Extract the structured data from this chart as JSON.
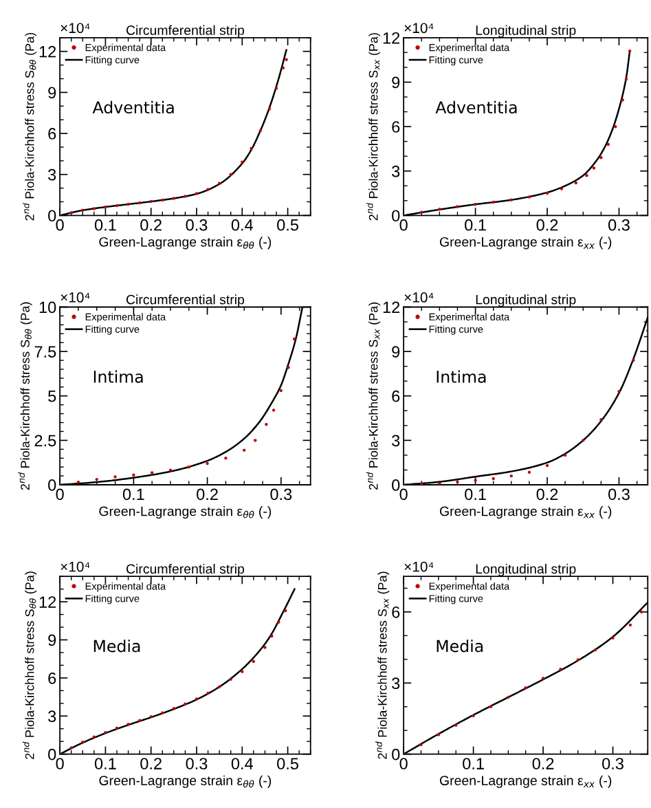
{
  "chart_data": [
    {
      "type": "line",
      "title": "Circumferential strip",
      "xlabel": "Green-Lagrange strain ε$_{θθ}$ (-)",
      "ylabel": "2$^{nd}$ Piola-Kirchhoff stress S$_{θθ}$ (Pa)",
      "annotations": [
        "×10⁴",
        "Adventitia"
      ],
      "xlim": [
        0,
        0.55
      ],
      "xticks": [
        0,
        0.1,
        0.2,
        0.3,
        0.4,
        0.5
      ],
      "ylim": [
        0,
        13
      ],
      "yticks": [
        0,
        3,
        6,
        9,
        12
      ],
      "legend": "top left",
      "series": [
        {
          "name": "Experimental data",
          "type": "scatter",
          "marker": "circle",
          "color": "#c00000",
          "x": [
            0,
            0.025,
            0.05,
            0.075,
            0.1,
            0.125,
            0.15,
            0.175,
            0.2,
            0.225,
            0.25,
            0.275,
            0.3,
            0.325,
            0.35,
            0.375,
            0.4,
            0.42,
            0.44,
            0.46,
            0.475,
            0.49,
            0.497
          ],
          "values": [
            0,
            0.2,
            0.38,
            0.5,
            0.62,
            0.72,
            0.82,
            0.92,
            1.02,
            1.13,
            1.25,
            1.4,
            1.6,
            1.9,
            2.35,
            3.0,
            3.9,
            4.9,
            6.2,
            7.8,
            9.3,
            10.8,
            11.4
          ]
        },
        {
          "name": "Fitting curve",
          "type": "line",
          "line_style": "solid",
          "color": "#000000",
          "x": [
            0,
            0.05,
            0.1,
            0.15,
            0.2,
            0.25,
            0.3,
            0.35,
            0.4,
            0.42,
            0.44,
            0.46,
            0.48,
            0.497
          ],
          "values": [
            0,
            0.38,
            0.62,
            0.82,
            1.02,
            1.25,
            1.58,
            2.3,
            3.8,
            4.8,
            6.2,
            7.9,
            10.0,
            12.1
          ]
        }
      ]
    },
    {
      "type": "line",
      "title": "Longitudinal strip",
      "xlabel": "Green-Lagrange strain ε$_{xx}$ (-)",
      "ylabel": "2$^{nd}$ Piola-Kirchhoff stress S$_{xx}$ (Pa)",
      "annotations": [
        "×10⁴",
        "Adventitia"
      ],
      "xlim": [
        0,
        0.34
      ],
      "xticks": [
        0,
        0.1,
        0.2,
        0.3
      ],
      "ylim": [
        0,
        12
      ],
      "yticks": [
        0,
        3,
        6,
        9,
        12
      ],
      "legend": "top left",
      "series": [
        {
          "name": "Experimental data",
          "type": "scatter",
          "marker": "circle",
          "color": "#c00000",
          "x": [
            0,
            0.025,
            0.05,
            0.075,
            0.1,
            0.125,
            0.15,
            0.175,
            0.2,
            0.22,
            0.24,
            0.255,
            0.265,
            0.275,
            0.285,
            0.295,
            0.305,
            0.31,
            0.315
          ],
          "values": [
            0,
            0.22,
            0.42,
            0.6,
            0.75,
            0.9,
            1.05,
            1.25,
            1.5,
            1.8,
            2.2,
            2.7,
            3.2,
            3.9,
            4.8,
            6.0,
            7.8,
            9.2,
            11.1
          ]
        },
        {
          "name": "Fitting curve",
          "type": "line",
          "line_style": "solid",
          "color": "#000000",
          "x": [
            0,
            0.05,
            0.1,
            0.15,
            0.2,
            0.225,
            0.25,
            0.27,
            0.28,
            0.29,
            0.3,
            0.31,
            0.315
          ],
          "values": [
            0,
            0.4,
            0.75,
            1.05,
            1.55,
            2.0,
            2.7,
            3.8,
            4.6,
            5.7,
            7.2,
            9.3,
            11.1
          ]
        }
      ]
    },
    {
      "type": "line",
      "title": "Circumferential strip",
      "xlabel": "Green-Lagrange strain ε$_{θθ}$ (-)",
      "ylabel": "2$^{nd}$ Piola-Kirchhoff stress S$_{θθ}$ (Pa)",
      "annotations": [
        "×10⁴",
        "Intima"
      ],
      "xlim": [
        0,
        0.34
      ],
      "xticks": [
        0,
        0.1,
        0.2,
        0.3
      ],
      "ylim": [
        0,
        10
      ],
      "yticks": [
        0,
        2.5,
        5,
        7.5,
        10
      ],
      "legend": "top left",
      "series": [
        {
          "name": "Experimental data",
          "type": "scatter",
          "marker": "circle",
          "color": "#c00000",
          "x": [
            0,
            0.025,
            0.05,
            0.075,
            0.1,
            0.125,
            0.15,
            0.175,
            0.2,
            0.225,
            0.25,
            0.265,
            0.28,
            0.29,
            0.3,
            0.31,
            0.318
          ],
          "values": [
            0,
            0.15,
            0.3,
            0.45,
            0.55,
            0.68,
            0.82,
            1.0,
            1.2,
            1.5,
            1.95,
            2.5,
            3.4,
            4.2,
            5.3,
            6.6,
            8.2
          ]
        },
        {
          "name": "Fitting curve",
          "type": "line",
          "line_style": "solid",
          "color": "#000000",
          "x": [
            0,
            0.05,
            0.1,
            0.15,
            0.2,
            0.225,
            0.25,
            0.27,
            0.29,
            0.3,
            0.31,
            0.32,
            0.329
          ],
          "values": [
            0,
            0.15,
            0.4,
            0.75,
            1.35,
            1.85,
            2.6,
            3.5,
            4.8,
            5.6,
            6.8,
            8.2,
            10.0
          ]
        }
      ]
    },
    {
      "type": "line",
      "title": "Longitudinal strip",
      "xlabel": "Green-Lagrange strain ε$_{xx}$ (-)",
      "ylabel": "2$^{nd}$ Piola-Kirchhoff stress S$_{xx}$ (Pa)",
      "annotations": [
        "×10⁴",
        "Intima"
      ],
      "xlim": [
        0,
        0.34
      ],
      "xticks": [
        0,
        0.1,
        0.2,
        0.3
      ],
      "ylim": [
        0,
        12
      ],
      "yticks": [
        0,
        3,
        6,
        9,
        12
      ],
      "legend": "top left",
      "series": [
        {
          "name": "Experimental data",
          "type": "scatter",
          "marker": "circle",
          "color": "#c00000",
          "x": [
            0,
            0.025,
            0.05,
            0.075,
            0.1,
            0.125,
            0.15,
            0.175,
            0.2,
            0.225,
            0.25,
            0.275,
            0.3,
            0.32,
            0.34
          ],
          "values": [
            0,
            0.05,
            0.1,
            0.2,
            0.3,
            0.42,
            0.6,
            0.85,
            1.3,
            2.0,
            3.0,
            4.4,
            6.3,
            8.4,
            10.4
          ]
        },
        {
          "name": "Fitting curve",
          "type": "line",
          "line_style": "solid",
          "color": "#000000",
          "x": [
            0,
            0.05,
            0.1,
            0.15,
            0.2,
            0.225,
            0.25,
            0.275,
            0.3,
            0.32,
            0.34
          ],
          "values": [
            0,
            0.2,
            0.55,
            0.9,
            1.5,
            2.1,
            3.0,
            4.3,
            6.2,
            8.5,
            11.3
          ]
        }
      ]
    },
    {
      "type": "line",
      "title": "Circumferential strip",
      "xlabel": "Green-Lagrange strain ε$_{θθ}$ (-)",
      "ylabel": "2$^{nd}$ Piola-Kirchhoff stress S$_{θθ}$ (Pa)",
      "annotations": [
        "×10⁴",
        "Media"
      ],
      "xlim": [
        0,
        0.55
      ],
      "xticks": [
        0,
        0.1,
        0.2,
        0.3,
        0.4,
        0.5
      ],
      "ylim": [
        0,
        14
      ],
      "yticks": [
        0,
        3,
        6,
        9,
        12
      ],
      "legend": "top left",
      "series": [
        {
          "name": "Experimental data",
          "type": "scatter",
          "marker": "circle",
          "color": "#c00000",
          "x": [
            0,
            0.025,
            0.05,
            0.075,
            0.1,
            0.125,
            0.15,
            0.175,
            0.2,
            0.225,
            0.25,
            0.275,
            0.3,
            0.325,
            0.35,
            0.375,
            0.4,
            0.425,
            0.45,
            0.465,
            0.48,
            0.495
          ],
          "values": [
            0,
            0.5,
            0.95,
            1.35,
            1.7,
            2.05,
            2.35,
            2.65,
            2.95,
            3.25,
            3.6,
            3.95,
            4.35,
            4.8,
            5.3,
            5.9,
            6.5,
            7.3,
            8.4,
            9.3,
            10.4,
            11.3
          ]
        },
        {
          "name": "Fitting curve",
          "type": "line",
          "line_style": "solid",
          "color": "#000000",
          "x": [
            0,
            0.05,
            0.1,
            0.15,
            0.2,
            0.25,
            0.3,
            0.35,
            0.4,
            0.43,
            0.46,
            0.49,
            0.515
          ],
          "values": [
            0,
            0.9,
            1.65,
            2.3,
            2.9,
            3.55,
            4.3,
            5.3,
            6.7,
            7.8,
            9.2,
            11.2,
            13.0
          ]
        }
      ]
    },
    {
      "type": "line",
      "title": "Longitudinal strip",
      "xlabel": "Green-Lagrange strain ε$_{xx}$ (-)",
      "ylabel": "2$^{nd}$ Piola-Kirchhoff stress S$_{xx}$ (Pa)",
      "annotations": [
        "×10⁴",
        "Media"
      ],
      "xlim": [
        0,
        0.35
      ],
      "xticks": [
        0,
        0.1,
        0.2,
        0.3
      ],
      "ylim": [
        0,
        7.5
      ],
      "yticks": [
        0,
        3,
        6
      ],
      "legend": "top left",
      "series": [
        {
          "name": "Experimental data",
          "type": "scatter",
          "marker": "circle",
          "color": "#c00000",
          "x": [
            0,
            0.025,
            0.05,
            0.075,
            0.1,
            0.125,
            0.15,
            0.175,
            0.2,
            0.225,
            0.25,
            0.275,
            0.3,
            0.325,
            0.341
          ],
          "values": [
            0,
            0.4,
            0.82,
            1.22,
            1.62,
            2.0,
            2.4,
            2.8,
            3.2,
            3.58,
            3.98,
            4.4,
            4.9,
            5.45,
            6.0
          ]
        },
        {
          "name": "Fitting curve",
          "type": "line",
          "line_style": "solid",
          "color": "#000000",
          "x": [
            0,
            0.05,
            0.1,
            0.15,
            0.2,
            0.25,
            0.3,
            0.35
          ],
          "values": [
            0,
            0.85,
            1.65,
            2.4,
            3.15,
            3.95,
            4.95,
            6.4
          ]
        }
      ]
    }
  ]
}
